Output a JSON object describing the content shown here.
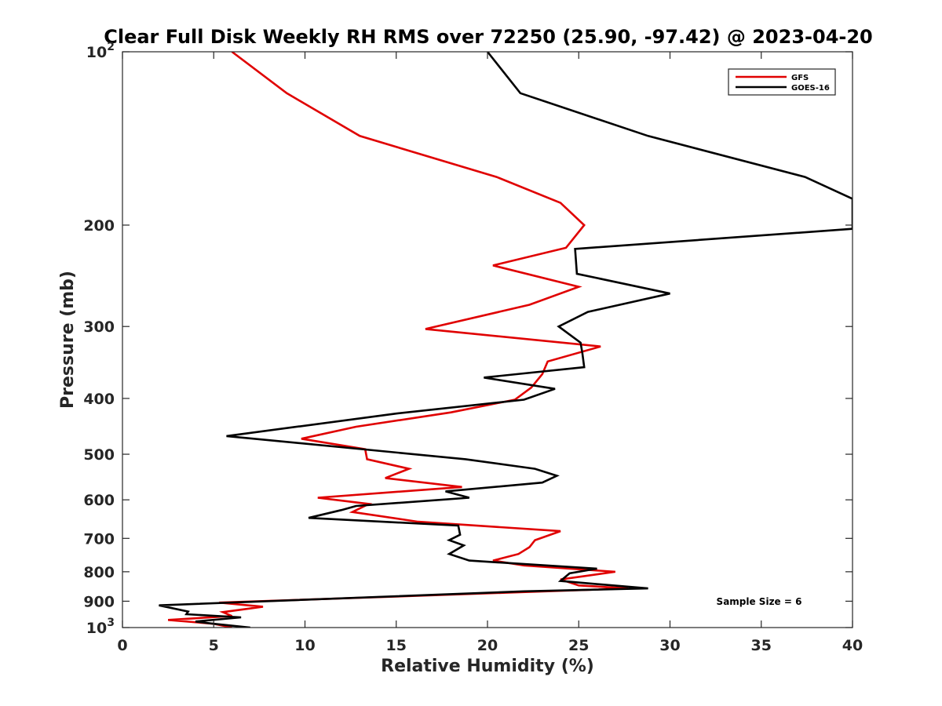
{
  "chart_data": {
    "type": "line",
    "title": "Clear Full Disk Weekly RH RMS over 72250 (25.90, -97.42) @ 2023-04-20",
    "xlabel": "Relative Humidity (%)",
    "ylabel": "Pressure (mb)",
    "xlim": [
      0,
      40
    ],
    "ylim": [
      100,
      1000
    ],
    "yscale": "log",
    "y_reversed": true,
    "xticks": [
      0,
      5,
      10,
      15,
      20,
      25,
      30,
      35,
      40
    ],
    "xtick_labels": [
      "0",
      "5",
      "10",
      "15",
      "20",
      "25",
      "30",
      "35",
      "40"
    ],
    "yticks": [
      100,
      200,
      300,
      400,
      500,
      600,
      700,
      800,
      900,
      1000
    ],
    "ytick_labels": [
      {
        "base": "10",
        "exp": "2"
      },
      {
        "base": "200",
        "exp": ""
      },
      {
        "base": "300",
        "exp": ""
      },
      {
        "base": "400",
        "exp": ""
      },
      {
        "base": "500",
        "exp": ""
      },
      {
        "base": "600",
        "exp": ""
      },
      {
        "base": "700",
        "exp": ""
      },
      {
        "base": "800",
        "exp": ""
      },
      {
        "base": "900",
        "exp": ""
      },
      {
        "base": "10",
        "exp": "3"
      }
    ],
    "legend_position": "top-right",
    "annotation": "Sample Size = 6",
    "series": [
      {
        "name": "GFS",
        "color": "#e00000",
        "points": [
          [
            6.0,
            100
          ],
          [
            9.0,
            118
          ],
          [
            13.0,
            140
          ],
          [
            20.5,
            165
          ],
          [
            24.0,
            183
          ],
          [
            25.3,
            200
          ],
          [
            24.3,
            219
          ],
          [
            20.3,
            235
          ],
          [
            25.0,
            256
          ],
          [
            22.3,
            275
          ],
          [
            16.6,
            303
          ],
          [
            26.2,
            325
          ],
          [
            23.3,
            345
          ],
          [
            23.0,
            363
          ],
          [
            22.4,
            383
          ],
          [
            21.5,
            402
          ],
          [
            18.0,
            423
          ],
          [
            12.8,
            448
          ],
          [
            9.8,
            470
          ],
          [
            13.3,
            490
          ],
          [
            13.4,
            510
          ],
          [
            15.7,
            530
          ],
          [
            14.4,
            550
          ],
          [
            18.6,
            570
          ],
          [
            10.7,
            595
          ],
          [
            13.5,
            610
          ],
          [
            12.6,
            630
          ],
          [
            16.2,
            655
          ],
          [
            24.0,
            680
          ],
          [
            22.6,
            705
          ],
          [
            22.3,
            725
          ],
          [
            21.7,
            745
          ],
          [
            20.3,
            765
          ],
          [
            22.0,
            780
          ],
          [
            27.0,
            800
          ],
          [
            24.0,
            825
          ],
          [
            25.0,
            845
          ],
          [
            27.7,
            855
          ],
          [
            21.0,
            870
          ],
          [
            5.3,
            905
          ],
          [
            7.7,
            920
          ],
          [
            5.5,
            940
          ],
          [
            6.0,
            955
          ],
          [
            2.5,
            970
          ],
          [
            5.0,
            985
          ],
          [
            6.0,
            1000
          ]
        ]
      },
      {
        "name": "GOES-16",
        "color": "#000000",
        "points": [
          [
            20.0,
            100
          ],
          [
            21.8,
            118
          ],
          [
            28.8,
            140
          ],
          [
            37.4,
            165
          ],
          [
            40.0,
            180
          ],
          [
            40.0,
            203
          ],
          [
            24.8,
            220
          ],
          [
            24.9,
            243
          ],
          [
            30.0,
            263
          ],
          [
            25.5,
            283
          ],
          [
            23.9,
            300
          ],
          [
            25.1,
            320
          ],
          [
            25.2,
            334
          ],
          [
            25.3,
            353
          ],
          [
            19.8,
            368
          ],
          [
            23.7,
            385
          ],
          [
            22.0,
            402
          ],
          [
            15.0,
            425
          ],
          [
            5.7,
            465
          ],
          [
            18.8,
            510
          ],
          [
            22.6,
            530
          ],
          [
            23.8,
            545
          ],
          [
            23.0,
            560
          ],
          [
            17.7,
            580
          ],
          [
            19.0,
            595
          ],
          [
            12.8,
            615
          ],
          [
            12.0,
            625
          ],
          [
            10.2,
            645
          ],
          [
            18.4,
            665
          ],
          [
            18.5,
            690
          ],
          [
            17.9,
            705
          ],
          [
            18.7,
            720
          ],
          [
            17.9,
            745
          ],
          [
            19.0,
            765
          ],
          [
            26.0,
            790
          ],
          [
            24.5,
            805
          ],
          [
            24.0,
            830
          ],
          [
            28.8,
            855
          ],
          [
            22.0,
            865
          ],
          [
            2.0,
            915
          ],
          [
            3.6,
            938
          ],
          [
            3.5,
            948
          ],
          [
            6.5,
            960
          ],
          [
            4.0,
            976
          ],
          [
            5.0,
            985
          ],
          [
            7.0,
            1000
          ]
        ]
      }
    ]
  }
}
